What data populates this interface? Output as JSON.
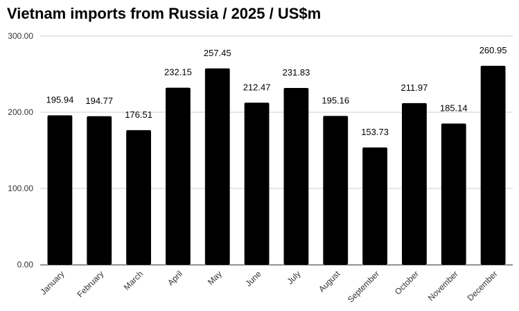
{
  "chart_data": {
    "type": "bar",
    "title": "Vietnam imports from Russia / 2025 / US$m",
    "xlabel": "",
    "ylabel": "",
    "categories": [
      "January",
      "February",
      "March",
      "April",
      "May",
      "June",
      "July",
      "August",
      "September",
      "October",
      "November",
      "December"
    ],
    "values": [
      195.94,
      194.77,
      176.51,
      232.15,
      257.45,
      212.47,
      231.83,
      195.16,
      153.73,
      211.97,
      185.14,
      260.95
    ],
    "value_labels": [
      "195.94",
      "194.77",
      "176.51",
      "232.15",
      "257.45",
      "212.47",
      "231.83",
      "195.16",
      "153.73",
      "211.97",
      "185.14",
      "260.95"
    ],
    "ylim": [
      0,
      300
    ],
    "y_ticks": [
      0,
      100,
      200,
      300
    ],
    "y_tick_labels": [
      "0.00",
      "100.00",
      "200.00",
      "300.00"
    ],
    "grid": true,
    "legend": "none",
    "colors": {
      "bar": "#000000",
      "grid": "#cccccc",
      "axis": "#333333",
      "text": "#000000",
      "tick_text": "#333333"
    }
  }
}
